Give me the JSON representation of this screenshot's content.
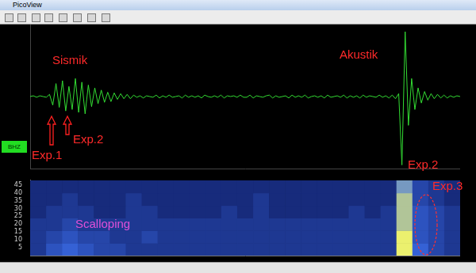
{
  "window": {
    "title": "PicoView"
  },
  "channel_label": "BHZ",
  "chart_data": [
    {
      "type": "line",
      "color": "#33dd33",
      "grid": false,
      "tick_labels": false,
      "xlim": [
        0,
        133
      ],
      "ylim": [
        -100,
        100
      ],
      "values": [
        0,
        1,
        -1,
        1,
        0,
        -1,
        3,
        -12,
        18,
        -15,
        22,
        -20,
        14,
        -18,
        25,
        -22,
        20,
        -24,
        16,
        -14,
        12,
        -10,
        9,
        -8,
        6,
        -7,
        5,
        -4,
        4,
        -3,
        3,
        -3,
        2,
        -1,
        1,
        -2,
        1,
        0,
        -1,
        2,
        -2,
        1,
        -1,
        2,
        -1,
        0,
        1,
        -2,
        2,
        -1,
        1,
        -1,
        1,
        -2,
        2,
        0,
        -1,
        1,
        -1,
        2,
        -2,
        1,
        0,
        1,
        -1,
        2,
        -1,
        -1,
        2,
        -2,
        1,
        0,
        -1,
        1,
        2,
        -2,
        1,
        -1,
        0,
        1,
        -2,
        2,
        -1,
        1,
        -1,
        2,
        -2,
        0,
        1,
        -1,
        1,
        -2,
        2,
        -1,
        0,
        1,
        -1,
        2,
        -2,
        1,
        -1,
        1,
        -2,
        2,
        -1,
        1,
        0,
        -1,
        2,
        -1,
        1,
        -2,
        2,
        -3,
        4,
        -95,
        90,
        -40,
        25,
        -18,
        12,
        -9,
        7,
        -5,
        4,
        -3,
        3,
        -2,
        2,
        -2,
        1,
        -1,
        1,
        0
      ]
    },
    {
      "type": "heatmap",
      "grid": false,
      "tick_labels": "y",
      "xlim": [
        0,
        27
      ],
      "ylim": [
        0,
        48
      ],
      "yticks": [
        5,
        10,
        15,
        20,
        25,
        30,
        35,
        40,
        45
      ],
      "row_edges": [
        0,
        8,
        16,
        24,
        32,
        40,
        48
      ],
      "color_range": [
        0,
        10
      ],
      "cells": [
        [
          3,
          5,
          6,
          5,
          4,
          4,
          3,
          3,
          3,
          3,
          3,
          3,
          3,
          3,
          3,
          3,
          3,
          3,
          3,
          3,
          3,
          3,
          3,
          10,
          6,
          4,
          3
        ],
        [
          3,
          4,
          5,
          4,
          4,
          3,
          3,
          4,
          3,
          3,
          3,
          3,
          3,
          3,
          3,
          3,
          3,
          3,
          3,
          3,
          3,
          3,
          3,
          10,
          5,
          4,
          3
        ],
        [
          3,
          3,
          4,
          3,
          3,
          3,
          3,
          3,
          3,
          3,
          3,
          3,
          3,
          3,
          3,
          3,
          3,
          3,
          3,
          3,
          3,
          3,
          3,
          9,
          5,
          4,
          3
        ],
        [
          2,
          3,
          3,
          3,
          2,
          2,
          3,
          3,
          2,
          2,
          2,
          2,
          3,
          2,
          3,
          2,
          2,
          2,
          2,
          2,
          3,
          2,
          3,
          9,
          5,
          4,
          3
        ],
        [
          2,
          2,
          3,
          2,
          2,
          2,
          3,
          2,
          2,
          2,
          2,
          2,
          2,
          2,
          3,
          2,
          2,
          2,
          2,
          2,
          2,
          2,
          2,
          9,
          4,
          3,
          2
        ],
        [
          2,
          2,
          2,
          2,
          2,
          2,
          2,
          2,
          2,
          2,
          2,
          2,
          2,
          2,
          2,
          2,
          2,
          2,
          2,
          2,
          2,
          2,
          2,
          8,
          4,
          3,
          2
        ]
      ]
    }
  ],
  "annotations": [
    {
      "text": "Sismik"
    },
    {
      "text": "Akustik"
    },
    {
      "text": "Exp.1"
    },
    {
      "text": "Exp.2"
    },
    {
      "text": "Exp.2"
    },
    {
      "text": "Exp.3"
    },
    {
      "text": "Scalloping"
    }
  ]
}
